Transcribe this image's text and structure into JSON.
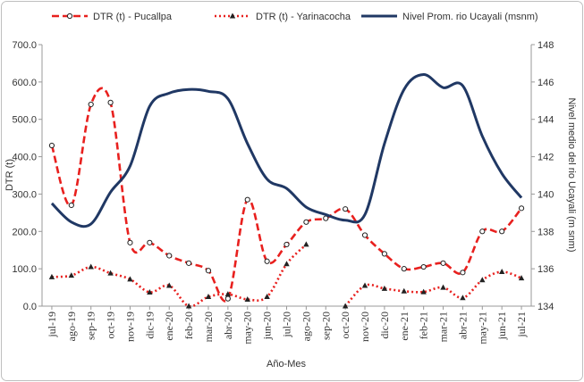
{
  "chart_data": {
    "type": "line",
    "x_label": "Año-Mes",
    "y_label": "DTR (t)",
    "y2_label": "Nivel medio del rio Ucayali (m snm)",
    "categories": [
      "jul-19",
      "ago-19",
      "sep-19",
      "oct-19",
      "nov-19",
      "dic-19",
      "ene-20",
      "feb-20",
      "mar-20",
      "abr-20",
      "may-20",
      "jun-20",
      "jul-20",
      "ago-20",
      "sep-20",
      "oct-20",
      "nov-20",
      "dic-20",
      "ene-21",
      "feb-21",
      "mar-21",
      "abr-21",
      "may-21",
      "jun-21",
      "jul-21"
    ],
    "ylim": [
      0,
      700
    ],
    "yticks": [
      {
        "value": 0,
        "label": "0.0"
      },
      {
        "value": 100,
        "label": "100.0"
      },
      {
        "value": 200,
        "label": "200.0"
      },
      {
        "value": 300,
        "label": "300.0"
      },
      {
        "value": 400,
        "label": "400.0"
      },
      {
        "value": 500,
        "label": "500.0"
      },
      {
        "value": 600,
        "label": "600.0"
      },
      {
        "value": 700,
        "label": "700.0"
      }
    ],
    "y2lim": [
      134,
      148
    ],
    "y2ticks": [
      134,
      136,
      138,
      140,
      142,
      144,
      146,
      148
    ],
    "legend": "top",
    "series": [
      {
        "name": "DTR (t) - Pucallpa",
        "color": "#e8201e",
        "dash": "dashed",
        "marker": "circle",
        "smooth": true,
        "values": [
          430,
          270,
          540,
          545,
          170,
          170,
          135,
          115,
          95,
          20,
          285,
          120,
          165,
          225,
          235,
          260,
          190,
          140,
          100,
          105,
          115,
          90,
          200,
          200,
          262
        ]
      },
      {
        "name": "DTR (t) - Yarinacocha",
        "color": "#e8201e",
        "dash": "dotted",
        "marker": "triangle",
        "smooth": true,
        "values": [
          78,
          82,
          105,
          88,
          72,
          37,
          55,
          0,
          25,
          32,
          18,
          25,
          113,
          165,
          null,
          0,
          55,
          47,
          40,
          38,
          50,
          22,
          70,
          92,
          75
        ]
      },
      {
        "name": "Nivel Prom. rio Ucayali  (msnm)",
        "color": "#203864",
        "dash": "solid",
        "marker": "none",
        "smooth": true,
        "axis": "y2",
        "values": [
          139.5,
          138.5,
          138.4,
          140.1,
          141.5,
          144.7,
          145.4,
          145.6,
          145.5,
          145.1,
          142.7,
          140.8,
          140.3,
          139.3,
          138.9,
          138.6,
          138.9,
          142.7,
          145.6,
          146.4,
          145.7,
          145.8,
          143.1,
          141.1,
          139.8
        ]
      }
    ]
  }
}
